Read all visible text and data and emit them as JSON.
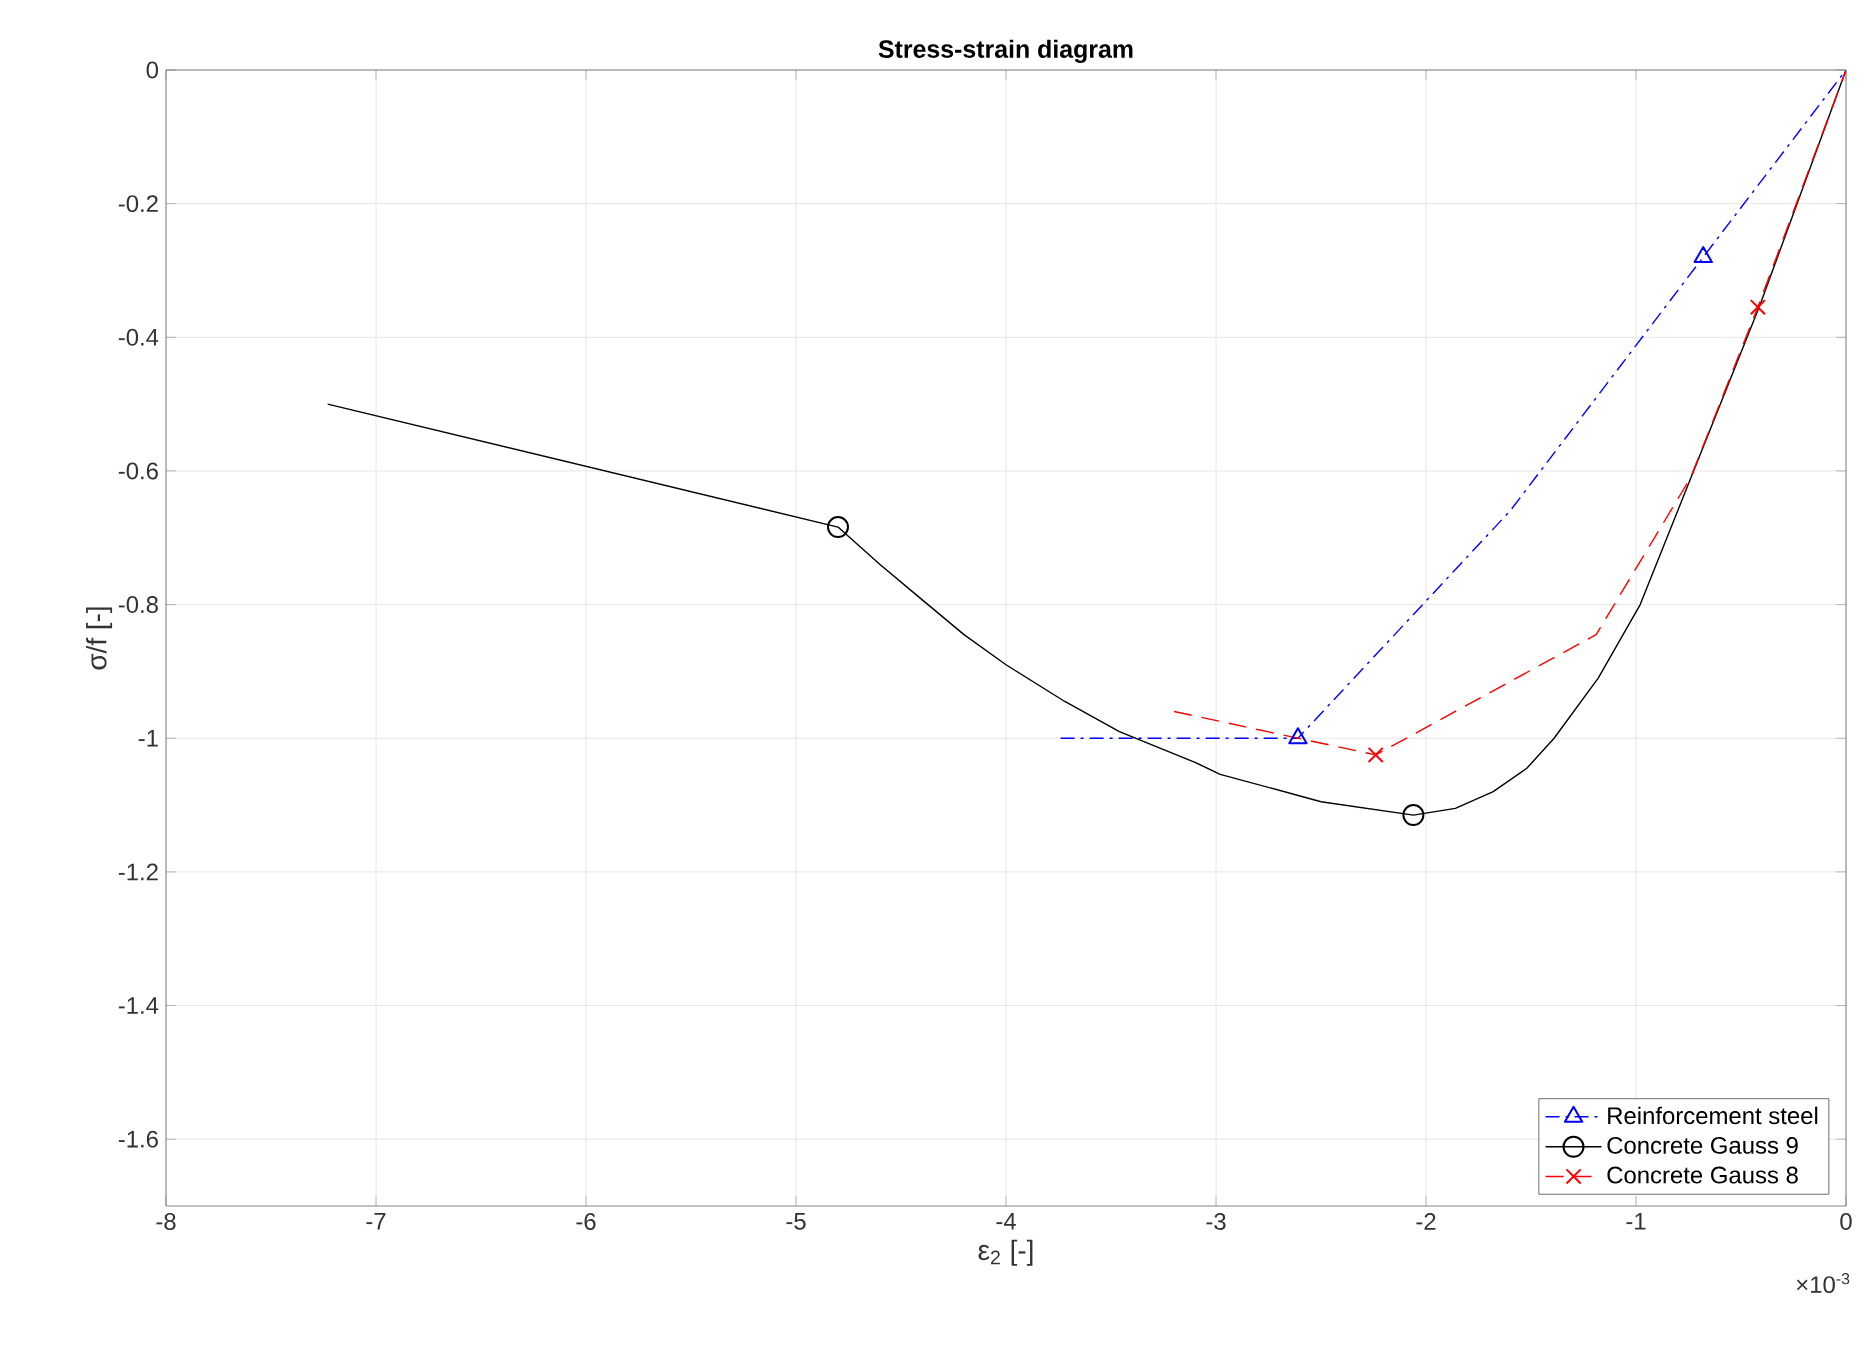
{
  "chart_data": {
    "type": "line",
    "title": "Stress-strain diagram",
    "xlabel": "ε$_{2}$ [-]",
    "ylabel": "σ/f  [-]",
    "xlim": [
      -8,
      0
    ],
    "ylim": [
      -1.7,
      0
    ],
    "xticks": [
      -8,
      -7,
      -6,
      -5,
      -4,
      -3,
      -2,
      -1,
      0
    ],
    "yticks": [
      -1.6,
      -1.4,
      -1.2,
      -1,
      -0.8,
      -0.6,
      -0.4,
      -0.2,
      0
    ],
    "grid": true,
    "legend": "bottom right",
    "annotations": [
      "×10$^{-3}$"
    ],
    "series": [
      {
        "name": "Reinforcement steel",
        "color": "#0000ff",
        "line_style": "dashdot",
        "x": [
          -3.74,
          -2.61,
          -1.6,
          -0.68,
          0
        ],
        "values": [
          -1.0,
          -1.0,
          -0.66,
          -0.28,
          0
        ]
      },
      {
        "name": "Concrete Gauss 9",
        "color": "#000000",
        "line_style": "solid",
        "x": [
          -7.23,
          -4.8,
          -4.6,
          -4.41,
          -4.2,
          -4.0,
          -3.72,
          -3.46,
          -3.1,
          -2.98,
          -2.5,
          -2.06,
          -1.86,
          -1.68,
          -1.52,
          -1.39,
          -1.18,
          -0.98,
          -0.7,
          -0.41,
          0
        ],
        "values": [
          -0.5,
          -0.684,
          -0.74,
          -0.79,
          -0.845,
          -0.89,
          -0.945,
          -0.99,
          -1.036,
          -1.054,
          -1.095,
          -1.115,
          -1.105,
          -1.08,
          -1.045,
          -1.0,
          -0.91,
          -0.8,
          -0.58,
          -0.352,
          0
        ]
      },
      {
        "name": "Concrete Gauss 8",
        "color": "#ff0000",
        "line_style": "dashed",
        "x": [
          -3.2,
          -2.24,
          -1.19,
          -0.74,
          -0.42,
          0
        ],
        "values": [
          -0.96,
          -1.025,
          -0.845,
          -0.61,
          -0.355,
          0
        ]
      },
      {
        "type": "scatter",
        "color": "#0000ff",
        "marker": "triangle",
        "x": [
          -2.61,
          -0.68
        ],
        "values": [
          -1.0,
          -0.28
        ]
      },
      {
        "type": "scatter",
        "color": "#000000",
        "marker": "circle",
        "x": [
          -4.8,
          -2.06
        ],
        "values": [
          -0.684,
          -1.115
        ]
      },
      {
        "type": "scatter",
        "color": "#ff0000",
        "marker": "cross",
        "x": [
          -2.24,
          -0.42
        ],
        "values": [
          -1.025,
          -0.355
        ]
      }
    ]
  }
}
